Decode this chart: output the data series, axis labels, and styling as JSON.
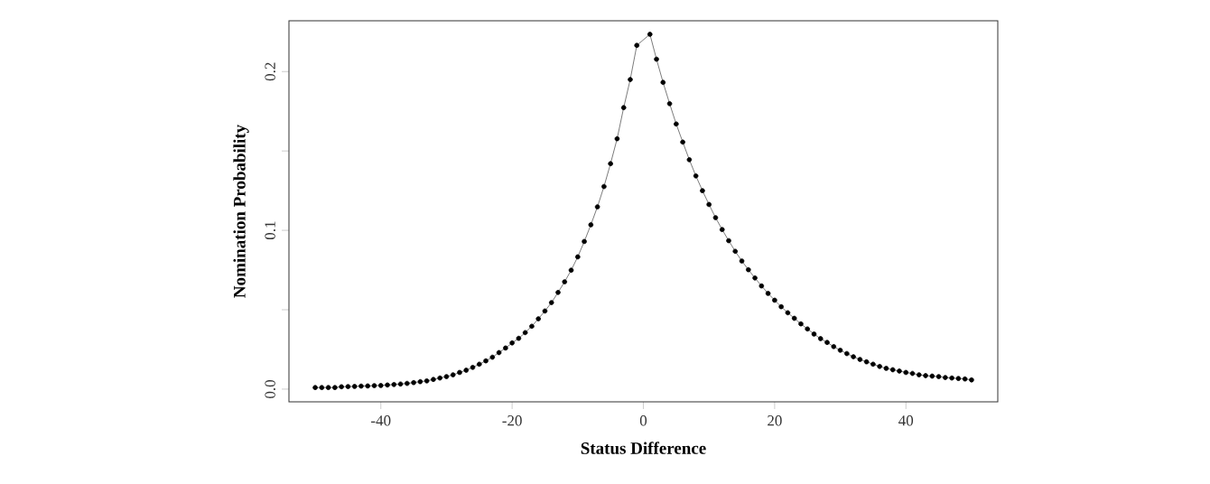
{
  "chart_data": {
    "type": "line",
    "xlabel": "Status Difference",
    "ylabel": "Nomination Probability",
    "x": [
      -50,
      -49,
      -48,
      -47,
      -46,
      -45,
      -44,
      -43,
      -42,
      -41,
      -40,
      -39,
      -38,
      -37,
      -36,
      -35,
      -34,
      -33,
      -32,
      -31,
      -30,
      -29,
      -28,
      -27,
      -26,
      -25,
      -24,
      -23,
      -22,
      -21,
      -20,
      -19,
      -18,
      -17,
      -16,
      -15,
      -14,
      -13,
      -12,
      -11,
      -10,
      -9,
      -8,
      -7,
      -6,
      -5,
      -4,
      -3,
      -2,
      -1,
      1,
      2,
      3,
      4,
      5,
      6,
      7,
      8,
      9,
      10,
      11,
      12,
      13,
      14,
      15,
      16,
      17,
      18,
      19,
      20,
      21,
      22,
      23,
      24,
      25,
      26,
      27,
      28,
      29,
      30,
      31,
      32,
      33,
      34,
      35,
      36,
      37,
      38,
      39,
      40,
      41,
      42,
      43,
      44,
      45,
      46,
      47,
      48,
      49,
      50
    ],
    "series": [
      {
        "color": "#000000",
        "values": [
          0.001,
          0.001,
          0.001,
          0.001,
          0.0015,
          0.0016,
          0.0017,
          0.0019,
          0.002,
          0.0022,
          0.0023,
          0.0026,
          0.0029,
          0.0032,
          0.0036,
          0.0041,
          0.0047,
          0.0052,
          0.0061,
          0.007,
          0.0079,
          0.009,
          0.0105,
          0.0119,
          0.0137,
          0.0157,
          0.0178,
          0.0201,
          0.023,
          0.0259,
          0.0291,
          0.032,
          0.0356,
          0.0396,
          0.0443,
          0.0492,
          0.0545,
          0.0609,
          0.0676,
          0.0749,
          0.0833,
          0.093,
          0.1035,
          0.1148,
          0.1276,
          0.142,
          0.1577,
          0.1773,
          0.195,
          0.2165,
          0.2235,
          0.2078,
          0.1932,
          0.1798,
          0.167,
          0.1556,
          0.1445,
          0.1343,
          0.125,
          0.1163,
          0.108,
          0.1005,
          0.0935,
          0.0868,
          0.0807,
          0.0752,
          0.07,
          0.065,
          0.0603,
          0.056,
          0.0519,
          0.0481,
          0.0446,
          0.0411,
          0.0379,
          0.0347,
          0.0318,
          0.0294,
          0.0268,
          0.0245,
          0.0224,
          0.0204,
          0.0187,
          0.0172,
          0.0157,
          0.0143,
          0.0131,
          0.0122,
          0.0114,
          0.0105,
          0.0099,
          0.009,
          0.0085,
          0.0082,
          0.0079,
          0.0073,
          0.007,
          0.0067,
          0.0064,
          0.0058
        ]
      }
    ],
    "xlim": [
      -54,
      54
    ],
    "ylim": [
      -0.008,
      0.232
    ],
    "xticks": [
      -40,
      -20,
      0,
      20,
      40
    ],
    "yticks": [
      {
        "value": 0,
        "label": "0.0"
      },
      {
        "value": 0.05,
        "label": null
      },
      {
        "value": 0.1,
        "label": "0.1"
      },
      {
        "value": 0.15,
        "label": null
      },
      {
        "value": 0.2,
        "label": "0.2"
      }
    ],
    "marker": "circle",
    "line_style": "solid"
  }
}
